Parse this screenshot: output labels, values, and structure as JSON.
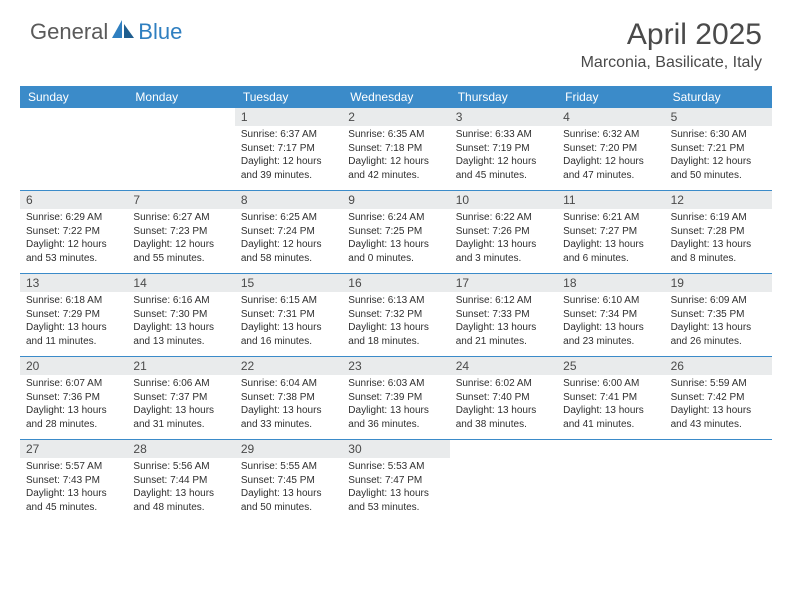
{
  "logo": {
    "part1": "General",
    "part2": "Blue"
  },
  "title": "April 2025",
  "location": "Marconia, Basilicate, Italy",
  "colors": {
    "header_bg": "#3b8bc9",
    "header_text": "#ffffff",
    "daynum_bg": "#e9ebec",
    "text": "#333333",
    "title_text": "#4a4a4a",
    "rule": "#3b8bc9"
  },
  "weekdays": [
    "Sunday",
    "Monday",
    "Tuesday",
    "Wednesday",
    "Thursday",
    "Friday",
    "Saturday"
  ],
  "weeks": [
    [
      null,
      null,
      {
        "d": "1",
        "r": "6:37 AM",
        "s": "7:17 PM",
        "l": "12 hours and 39 minutes."
      },
      {
        "d": "2",
        "r": "6:35 AM",
        "s": "7:18 PM",
        "l": "12 hours and 42 minutes."
      },
      {
        "d": "3",
        "r": "6:33 AM",
        "s": "7:19 PM",
        "l": "12 hours and 45 minutes."
      },
      {
        "d": "4",
        "r": "6:32 AM",
        "s": "7:20 PM",
        "l": "12 hours and 47 minutes."
      },
      {
        "d": "5",
        "r": "6:30 AM",
        "s": "7:21 PM",
        "l": "12 hours and 50 minutes."
      }
    ],
    [
      {
        "d": "6",
        "r": "6:29 AM",
        "s": "7:22 PM",
        "l": "12 hours and 53 minutes."
      },
      {
        "d": "7",
        "r": "6:27 AM",
        "s": "7:23 PM",
        "l": "12 hours and 55 minutes."
      },
      {
        "d": "8",
        "r": "6:25 AM",
        "s": "7:24 PM",
        "l": "12 hours and 58 minutes."
      },
      {
        "d": "9",
        "r": "6:24 AM",
        "s": "7:25 PM",
        "l": "13 hours and 0 minutes."
      },
      {
        "d": "10",
        "r": "6:22 AM",
        "s": "7:26 PM",
        "l": "13 hours and 3 minutes."
      },
      {
        "d": "11",
        "r": "6:21 AM",
        "s": "7:27 PM",
        "l": "13 hours and 6 minutes."
      },
      {
        "d": "12",
        "r": "6:19 AM",
        "s": "7:28 PM",
        "l": "13 hours and 8 minutes."
      }
    ],
    [
      {
        "d": "13",
        "r": "6:18 AM",
        "s": "7:29 PM",
        "l": "13 hours and 11 minutes."
      },
      {
        "d": "14",
        "r": "6:16 AM",
        "s": "7:30 PM",
        "l": "13 hours and 13 minutes."
      },
      {
        "d": "15",
        "r": "6:15 AM",
        "s": "7:31 PM",
        "l": "13 hours and 16 minutes."
      },
      {
        "d": "16",
        "r": "6:13 AM",
        "s": "7:32 PM",
        "l": "13 hours and 18 minutes."
      },
      {
        "d": "17",
        "r": "6:12 AM",
        "s": "7:33 PM",
        "l": "13 hours and 21 minutes."
      },
      {
        "d": "18",
        "r": "6:10 AM",
        "s": "7:34 PM",
        "l": "13 hours and 23 minutes."
      },
      {
        "d": "19",
        "r": "6:09 AM",
        "s": "7:35 PM",
        "l": "13 hours and 26 minutes."
      }
    ],
    [
      {
        "d": "20",
        "r": "6:07 AM",
        "s": "7:36 PM",
        "l": "13 hours and 28 minutes."
      },
      {
        "d": "21",
        "r": "6:06 AM",
        "s": "7:37 PM",
        "l": "13 hours and 31 minutes."
      },
      {
        "d": "22",
        "r": "6:04 AM",
        "s": "7:38 PM",
        "l": "13 hours and 33 minutes."
      },
      {
        "d": "23",
        "r": "6:03 AM",
        "s": "7:39 PM",
        "l": "13 hours and 36 minutes."
      },
      {
        "d": "24",
        "r": "6:02 AM",
        "s": "7:40 PM",
        "l": "13 hours and 38 minutes."
      },
      {
        "d": "25",
        "r": "6:00 AM",
        "s": "7:41 PM",
        "l": "13 hours and 41 minutes."
      },
      {
        "d": "26",
        "r": "5:59 AM",
        "s": "7:42 PM",
        "l": "13 hours and 43 minutes."
      }
    ],
    [
      {
        "d": "27",
        "r": "5:57 AM",
        "s": "7:43 PM",
        "l": "13 hours and 45 minutes."
      },
      {
        "d": "28",
        "r": "5:56 AM",
        "s": "7:44 PM",
        "l": "13 hours and 48 minutes."
      },
      {
        "d": "29",
        "r": "5:55 AM",
        "s": "7:45 PM",
        "l": "13 hours and 50 minutes."
      },
      {
        "d": "30",
        "r": "5:53 AM",
        "s": "7:47 PM",
        "l": "13 hours and 53 minutes."
      },
      null,
      null,
      null
    ]
  ],
  "labels": {
    "sunrise": "Sunrise: ",
    "sunset": "Sunset: ",
    "daylight": "Daylight: "
  }
}
